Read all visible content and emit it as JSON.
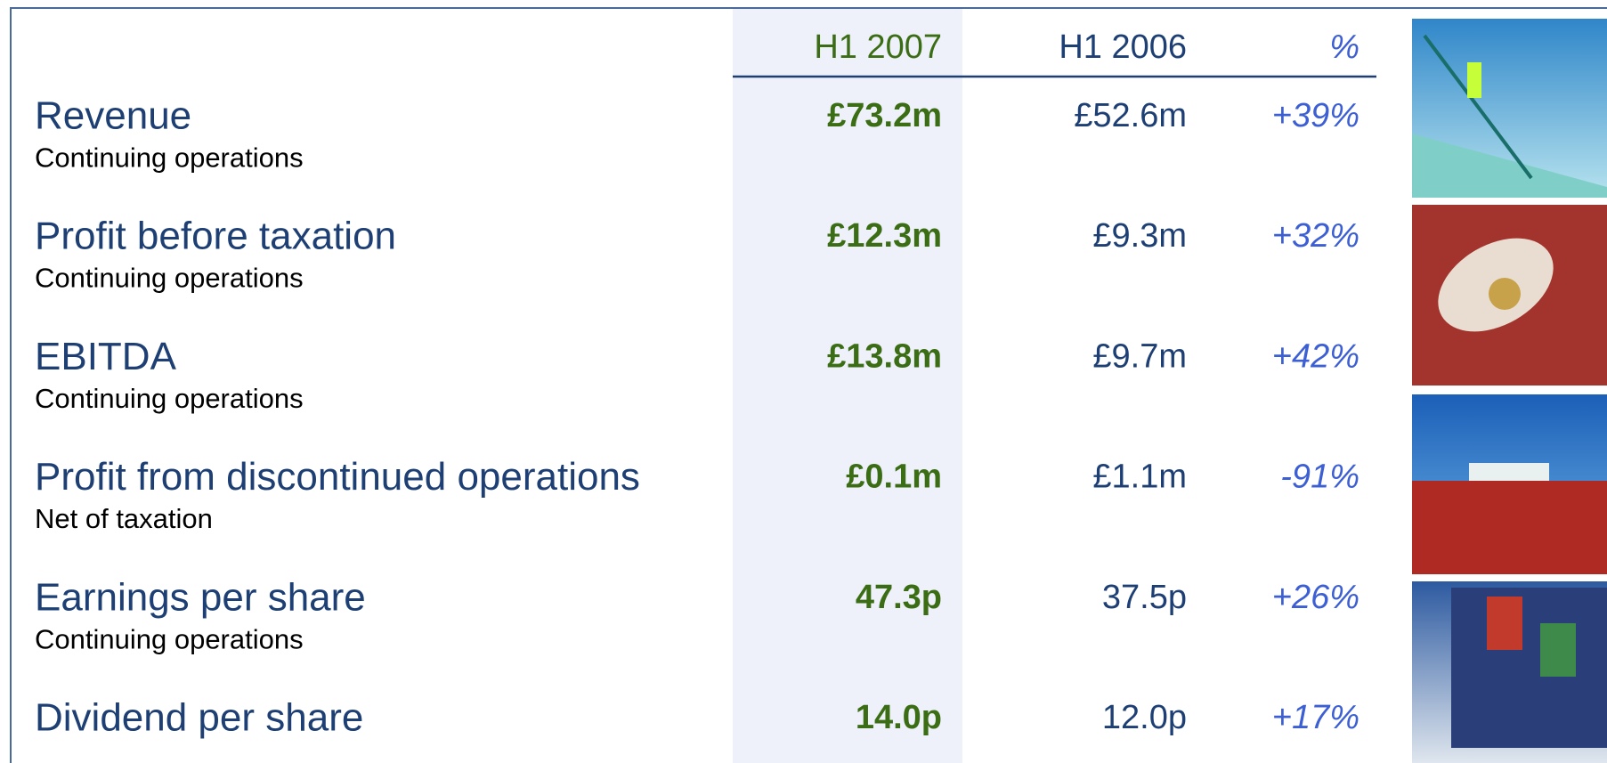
{
  "header": {
    "columns": [
      "H1 2007",
      "H1 2006",
      "%"
    ]
  },
  "rows": [
    {
      "label": "Revenue",
      "sublabel": "Continuing operations",
      "h1_2007": "£73.2m",
      "h1_2006": "£52.6m",
      "change": "+39%"
    },
    {
      "label": "Profit before taxation",
      "sublabel": "Continuing operations",
      "h1_2007": "£12.3m",
      "h1_2006": "£9.3m",
      "change": "+32%"
    },
    {
      "label": "EBITDA",
      "sublabel": "Continuing operations",
      "h1_2007": "£13.8m",
      "h1_2006": "£9.7m",
      "change": "+42%"
    },
    {
      "label": "Profit from discontinued operations",
      "sublabel": "Net of taxation",
      "h1_2007": "£0.1m",
      "h1_2006": "£1.1m",
      "change": "-91%"
    },
    {
      "label": "Earnings per share",
      "sublabel": "Continuing operations",
      "h1_2007": "47.3p",
      "h1_2006": "37.5p",
      "change": "+26%"
    },
    {
      "label": "Dividend per share",
      "h1_2007": "14.0p",
      "h1_2006": "12.0p",
      "change": "+17%"
    }
  ]
}
